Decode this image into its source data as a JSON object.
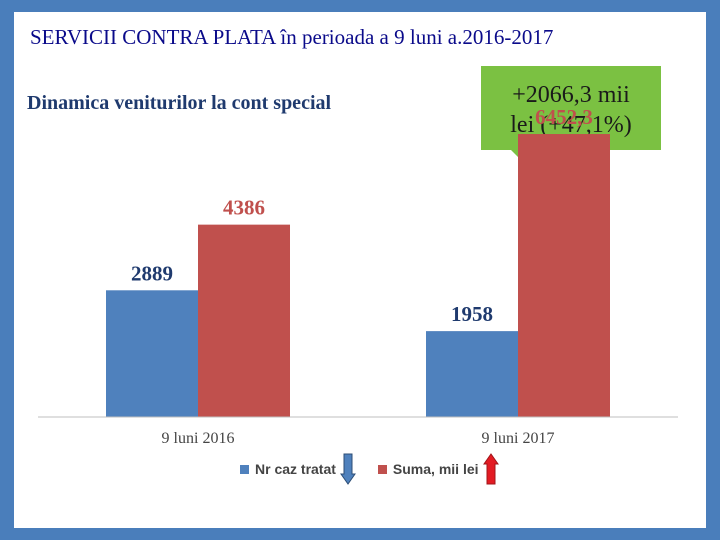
{
  "slide": {
    "title": "SERVICII  CONTRA PLATA în perioada a  9 luni a.2016-2017",
    "callout_lines": [
      "+2066,3 mii",
      "lei (+47,1%)"
    ]
  },
  "colors": {
    "background": "#4a7ebb",
    "series1": "#4f81bd",
    "series2": "#c0504d",
    "callout": "#7bc142",
    "arrow_down": "#4f81bd",
    "arrow_up": "#e31b23"
  },
  "chart_data": {
    "type": "bar",
    "title": "Dinamica veniturilor la cont special",
    "categories": [
      "9 luni 2016",
      "9 luni 2017"
    ],
    "series": [
      {
        "name": "Nr caz tratat",
        "values": [
          2889,
          1958
        ],
        "labels": [
          "2889",
          "1958"
        ],
        "trend_icon": "arrow-down-icon"
      },
      {
        "name": "Suma, mii lei",
        "values": [
          4386,
          6452.3
        ],
        "labels": [
          "4386",
          "6452,3"
        ],
        "trend_icon": "arrow-up-icon"
      }
    ],
    "ylim": [
      0,
      7000
    ],
    "grid": false,
    "legend": "bottom"
  }
}
